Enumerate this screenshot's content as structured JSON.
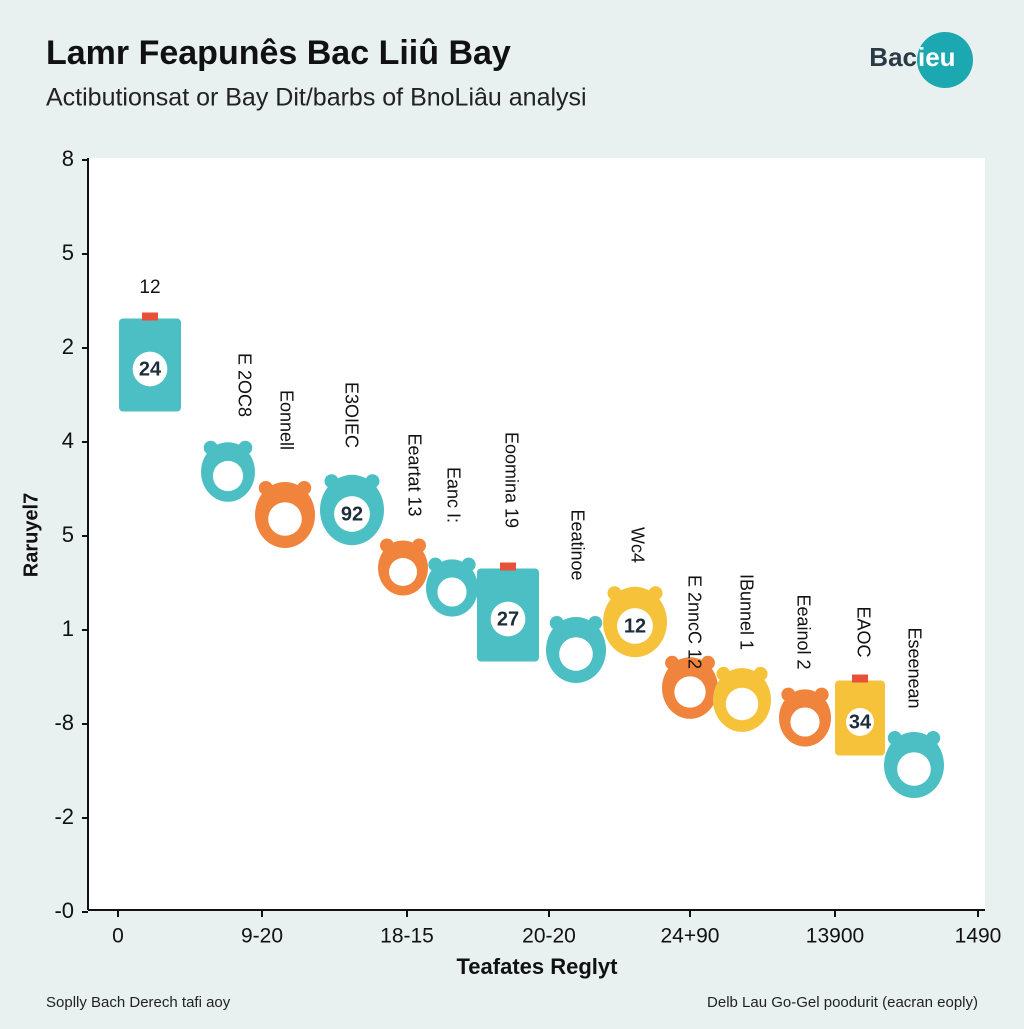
{
  "header": {
    "title": "Lamr Feapunês Bac Liiû Bay",
    "subtitle": "Actibutionsat or Bay Dit/barbs of BnoLiâu analysi",
    "logo": {
      "left": "Bac",
      "right": "ieu"
    }
  },
  "plot": {
    "y_axis_label": "Raruyel7",
    "y_labels": [
      "8",
      "5",
      "2",
      "4",
      "5",
      "1",
      "-8",
      "-2",
      "-0"
    ],
    "x_labels": [
      "0",
      "9-20",
      "18-15",
      "20-20",
      "24+90",
      "13900",
      "1490"
    ],
    "x_axis_label": "Teafates Reglyt",
    "items": [
      {
        "label": "12",
        "badge": "24"
      },
      {
        "label": "E 2OC8"
      },
      {
        "label": "Eonnell"
      },
      {
        "label": "E3OIEC",
        "badge": "92"
      },
      {
        "label": "Eeartat 13"
      },
      {
        "label": "Eanc I:"
      },
      {
        "label": "Eoomina 19",
        "badge": "27"
      },
      {
        "label": "Eeatinoe"
      },
      {
        "label": "Wc4",
        "badge": "12"
      },
      {
        "label": "E 2nncC 12"
      },
      {
        "label": "IBunnel 1"
      },
      {
        "label": "Eeainol 2"
      },
      {
        "label": "EAOC",
        "badge": "34"
      },
      {
        "label": "Eseenean"
      }
    ]
  },
  "footer": {
    "left": "Soplly Bach Derech tafi aoy",
    "right": "Delb Lau Go-Gel poodurit (eacran eoply)"
  }
}
